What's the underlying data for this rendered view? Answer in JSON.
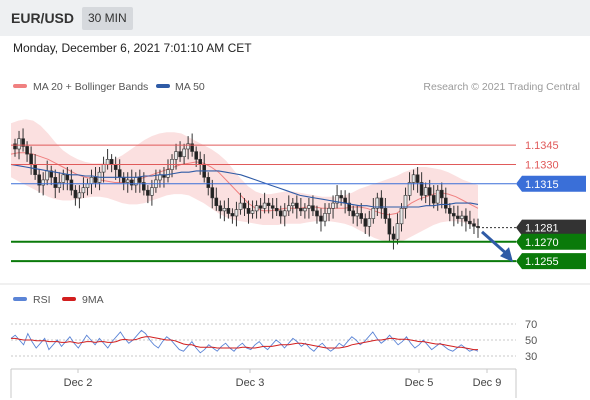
{
  "header": {
    "pair": "EUR/USD",
    "timeframe": "30 MIN"
  },
  "timestamp": "Monday, December 6, 2021 7:01:10 AM CET",
  "legend": {
    "bb": "MA 20 + Bollinger Bands",
    "ma50": "MA 50",
    "rsi": "RSI",
    "ma9": "9MA"
  },
  "credit": "Research © 2021 Trading Central",
  "colors": {
    "bb": "#f08080",
    "band_fill": "#fbe0e0",
    "ma50": "#2f5ba6",
    "pivot_blue": "#3a6fd8",
    "support": "#0a7a0a",
    "resistance": "#e05a5a",
    "rsi": "#5b84d6",
    "ma9": "#d21e1e",
    "candle_up": "#e8e8e8",
    "candle_down": "#222222"
  },
  "chart_data": {
    "type": "candlestick",
    "x_labels": [
      "Dec 2",
      "Dec 3",
      "Dec 5",
      "Dec 9"
    ],
    "price_ylim": [
      1.1245,
      1.138
    ],
    "levels": [
      {
        "value": "1.1345",
        "price": 1.1345,
        "kind": "resistance"
      },
      {
        "value": "1.1330",
        "price": 1.133,
        "kind": "resistance"
      },
      {
        "value": "1.1315",
        "price": 1.1315,
        "kind": "pivot"
      },
      {
        "value": "1.1281",
        "price": 1.1281,
        "kind": "current"
      },
      {
        "value": "1.1270",
        "price": 1.127,
        "kind": "support"
      },
      {
        "value": "1.1255",
        "price": 1.1255,
        "kind": "support"
      }
    ],
    "forecast_arrow": {
      "from": 1.128,
      "to": 1.1255,
      "direction": "down"
    },
    "closes": [
      1.1342,
      1.135,
      1.1344,
      1.1338,
      1.133,
      1.1322,
      1.1314,
      1.1318,
      1.1325,
      1.132,
      1.1312,
      1.1316,
      1.1322,
      1.1318,
      1.131,
      1.1304,
      1.1308,
      1.1312,
      1.1315,
      1.132,
      1.1316,
      1.1324,
      1.133,
      1.1334,
      1.133,
      1.1326,
      1.132,
      1.1316,
      1.1318,
      1.1314,
      1.132,
      1.1316,
      1.131,
      1.1306,
      1.1312,
      1.1318,
      1.1322,
      1.132,
      1.1326,
      1.1334,
      1.134,
      1.1336,
      1.1342,
      1.1346,
      1.134,
      1.1334,
      1.133,
      1.132,
      1.1312,
      1.1304,
      1.1298,
      1.1294,
      1.1296,
      1.1292,
      1.129,
      1.1295,
      1.13,
      1.1296,
      1.1292,
      1.1294,
      1.1298,
      1.1296,
      1.13,
      1.1298,
      1.1296,
      1.1294,
      1.129,
      1.1294,
      1.1298,
      1.13,
      1.1296,
      1.1294,
      1.1296,
      1.1298,
      1.1294,
      1.129,
      1.1286,
      1.1292,
      1.1296,
      1.13,
      1.1306,
      1.1304,
      1.13,
      1.1294,
      1.129,
      1.1292,
      1.1288,
      1.1282,
      1.1288,
      1.1296,
      1.1304,
      1.1296,
      1.1288,
      1.1276,
      1.1272,
      1.1284,
      1.1296,
      1.1306,
      1.1316,
      1.1322,
      1.1316,
      1.1306,
      1.1312,
      1.1306,
      1.13,
      1.131,
      1.1304,
      1.1296,
      1.1292,
      1.129,
      1.1288,
      1.129,
      1.1286,
      1.1284,
      1.1282,
      1.1281
    ],
    "ma50": [
      1.133,
      1.1329,
      1.1328,
      1.1327,
      1.1326,
      1.1325,
      1.1324,
      1.1323,
      1.1322,
      1.1322,
      1.1321,
      1.1321,
      1.132,
      1.132,
      1.132,
      1.132,
      1.132,
      1.132,
      1.1321,
      1.1321,
      1.1322,
      1.1322,
      1.1323,
      1.1324,
      1.1324,
      1.1325,
      1.1325,
      1.1325,
      1.1325,
      1.1324,
      1.1323,
      1.1322,
      1.132,
      1.1318,
      1.1316,
      1.1314,
      1.1312,
      1.131,
      1.1308,
      1.1306,
      1.1305,
      1.1304,
      1.1303,
      1.1302,
      1.1301,
      1.13,
      1.1299,
      1.1298,
      1.1298,
      1.1297,
      1.1297,
      1.1297,
      1.1297,
      1.1297,
      1.1297,
      1.1297,
      1.1298,
      1.1298,
      1.1299,
      1.1299,
      1.13,
      1.13,
      1.13,
      1.1299
    ],
    "bb_mid": [
      1.1338,
      1.1339,
      1.1339,
      1.1338,
      1.1336,
      1.1334,
      1.1331,
      1.1328,
      1.1325,
      1.1322,
      1.132,
      1.1319,
      1.1318,
      1.1317,
      1.1316,
      1.1316,
      1.1317,
      1.1318,
      1.132,
      1.1322,
      1.1324,
      1.1326,
      1.1328,
      1.133,
      1.1331,
      1.1332,
      1.1331,
      1.1328,
      1.1324,
      1.1318,
      1.1312,
      1.1306,
      1.13,
      1.1296,
      1.1294,
      1.1294,
      1.1295,
      1.1296,
      1.1296,
      1.1296,
      1.1297,
      1.1297,
      1.1296,
      1.1296,
      1.1296,
      1.1296,
      1.1297,
      1.1297,
      1.1296,
      1.1294,
      1.1292,
      1.1291,
      1.1292,
      1.1296,
      1.13,
      1.1303,
      1.1305,
      1.1307,
      1.1308,
      1.1307,
      1.1305,
      1.1302,
      1.1299,
      1.1296
    ],
    "bb_upper": [
      1.1362,
      1.1364,
      1.1365,
      1.1364,
      1.136,
      1.1354,
      1.1347,
      1.1341,
      1.1337,
      1.1334,
      1.1332,
      1.1331,
      1.1331,
      1.1332,
      1.1334,
      1.1337,
      1.1341,
      1.1345,
      1.1349,
      1.1352,
      1.1354,
      1.1355,
      1.1355,
      1.1354,
      1.1351,
      1.1348,
      1.1345,
      1.1342,
      1.1338,
      1.1333,
      1.1326,
      1.1319,
      1.1313,
      1.1309,
      1.1307,
      1.1307,
      1.1308,
      1.1309,
      1.1309,
      1.1308,
      1.1307,
      1.1306,
      1.1305,
      1.1305,
      1.1305,
      1.1306,
      1.1308,
      1.1311,
      1.1313,
      1.1315,
      1.1317,
      1.1319,
      1.1321,
      1.1324,
      1.1326,
      1.1328,
      1.1328,
      1.1327,
      1.1326,
      1.1324,
      1.1321,
      1.1318,
      1.1316,
      1.1314
    ],
    "bb_lower": [
      1.132,
      1.1317,
      1.1314,
      1.1311,
      1.1308,
      1.1305,
      1.1303,
      1.1302,
      1.1302,
      1.1303,
      1.1304,
      1.1305,
      1.1305,
      1.1304,
      1.1302,
      1.13,
      1.1299,
      1.1299,
      1.13,
      1.1302,
      1.1304,
      1.1306,
      1.1307,
      1.1307,
      1.1306,
      1.1303,
      1.13,
      1.1296,
      1.1292,
      1.1289,
      1.1287,
      1.1286,
      1.1285,
      1.1284,
      1.1283,
      1.1283,
      1.1283,
      1.1284,
      1.1284,
      1.1284,
      1.1285,
      1.1286,
      1.1286,
      1.1286,
      1.1285,
      1.1284,
      1.1282,
      1.1279,
      1.1276,
      1.1273,
      1.1271,
      1.127,
      1.127,
      1.1271,
      1.1274,
      1.1277,
      1.128,
      1.1283,
      1.1285,
      1.1286,
      1.1286,
      1.1285,
      1.1283,
      1.1281
    ],
    "rsi_levels": [
      "70",
      "50",
      "30"
    ],
    "rsi_ylim": [
      20,
      80
    ],
    "rsi": [
      52,
      56,
      50,
      44,
      58,
      48,
      40,
      46,
      52,
      38,
      44,
      50,
      42,
      48,
      54,
      46,
      40,
      48,
      56,
      50,
      44,
      52,
      46,
      40,
      48,
      54,
      60,
      52,
      46,
      50,
      56,
      62,
      58,
      50,
      44,
      40,
      48,
      54,
      50,
      44,
      38,
      36,
      42,
      48,
      40,
      34,
      38,
      44,
      40,
      36,
      42,
      46,
      40,
      36,
      42,
      46,
      40,
      38,
      44,
      48,
      42,
      38,
      44,
      50,
      46,
      40,
      46,
      52,
      48,
      42,
      46,
      40,
      36,
      42,
      46,
      40,
      36,
      40,
      46,
      42,
      48,
      54,
      50,
      44,
      48,
      54,
      60,
      52,
      46,
      50,
      56,
      50,
      44,
      48,
      54,
      46,
      40,
      44,
      50,
      44,
      38,
      42,
      46,
      42,
      38,
      36,
      40,
      44,
      40,
      36,
      38,
      36
    ],
    "rsi_ma9": [
      52,
      52,
      51,
      50,
      50,
      50,
      49,
      49,
      49,
      48,
      48,
      48,
      47,
      47,
      48,
      47,
      46,
      47,
      48,
      48,
      47,
      48,
      48,
      47,
      47,
      48,
      50,
      51,
      50,
      50,
      51,
      53,
      54,
      54,
      53,
      52,
      51,
      50,
      50,
      49,
      47,
      45,
      44,
      44,
      42,
      41,
      41,
      41,
      41,
      40,
      40,
      40,
      40,
      40,
      40,
      41,
      41,
      40,
      40,
      41,
      42,
      42,
      42,
      43,
      44,
      44,
      44,
      45,
      46,
      46,
      45,
      44,
      43,
      42,
      41,
      40,
      40,
      40,
      40,
      41,
      42,
      44,
      45,
      46,
      47,
      48,
      49,
      50,
      50,
      51,
      52,
      52,
      51,
      51,
      51,
      50,
      49,
      48,
      48,
      47,
      46,
      45,
      45,
      44,
      43,
      42,
      41,
      41,
      40,
      39,
      38,
      38
    ]
  }
}
